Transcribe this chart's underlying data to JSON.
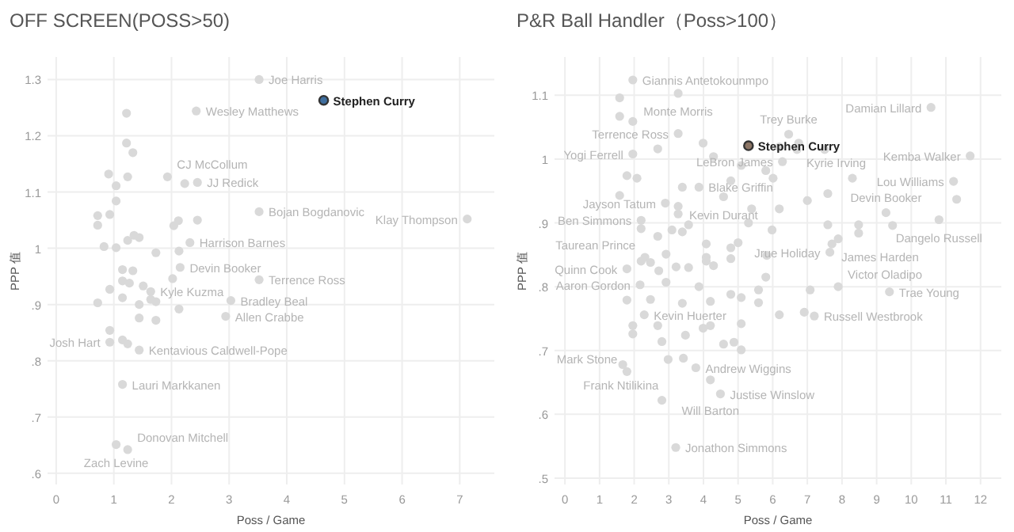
{
  "chart_data": [
    {
      "type": "scatter",
      "title": "OFF SCREEN(POSS>50)",
      "xlabel": "Poss / Game",
      "ylabel": "PPP 值",
      "xlim": [
        -0.15,
        7.6
      ],
      "ylim": [
        0.58,
        1.34
      ],
      "xticks": [
        0,
        1,
        2,
        3,
        4,
        5,
        6,
        7
      ],
      "yticks": [
        {
          "value": 0.6,
          "label": ".6"
        },
        {
          "value": 0.7,
          "label": ".7"
        },
        {
          "value": 0.8,
          "label": ".8"
        },
        {
          "value": 0.9,
          "label": ".9"
        },
        1.0,
        1.1,
        1.2,
        1.3
      ],
      "grid": true,
      "x": [
        3.52,
        1.22,
        2.43,
        1.22,
        1.33,
        0.91,
        1.24,
        1.93,
        2.23,
        2.45,
        1.04,
        1.04,
        0.72,
        0.93,
        0.72,
        3.52,
        2.45,
        2.12,
        2.04,
        7.13,
        1.35,
        1.44,
        1.24,
        2.32,
        0.83,
        1.04,
        1.73,
        2.13,
        2.15,
        1.15,
        1.33,
        3.52,
        2.02,
        1.15,
        1.27,
        1.51,
        1.64,
        0.93,
        1.15,
        1.64,
        1.73,
        1.44,
        0.72,
        3.03,
        2.13,
        2.94,
        1.44,
        1.73,
        0.93,
        0.93,
        1.15,
        1.24,
        1.44,
        1.15,
        1.04,
        1.24,
        4.64
      ],
      "values": [
        1.3,
        1.24,
        1.244,
        1.187,
        1.17,
        1.132,
        1.127,
        1.127,
        1.115,
        1.117,
        1.111,
        1.084,
        1.058,
        1.06,
        1.041,
        1.065,
        1.05,
        1.049,
        1.04,
        1.052,
        1.023,
        1.019,
        1.014,
        1.01,
        1.003,
        1.001,
        0.992,
        0.995,
        0.966,
        0.962,
        0.96,
        0.944,
        0.946,
        0.942,
        0.938,
        0.933,
        0.923,
        0.927,
        0.912,
        0.909,
        0.905,
        0.9,
        0.903,
        0.907,
        0.892,
        0.879,
        0.876,
        0.872,
        0.854,
        0.833,
        0.837,
        0.83,
        0.819,
        0.758,
        0.651,
        0.642,
        1.263
      ],
      "colors": [
        "#d9d9d9",
        "#d9d9d9",
        "#d9d9d9",
        "#d9d9d9",
        "#d9d9d9",
        "#d9d9d9",
        "#d9d9d9",
        "#d9d9d9",
        "#d9d9d9",
        "#d9d9d9",
        "#d9d9d9",
        "#d9d9d9",
        "#d9d9d9",
        "#d9d9d9",
        "#d9d9d9",
        "#d9d9d9",
        "#d9d9d9",
        "#d9d9d9",
        "#d9d9d9",
        "#d9d9d9",
        "#d9d9d9",
        "#d9d9d9",
        "#d9d9d9",
        "#d9d9d9",
        "#d9d9d9",
        "#d9d9d9",
        "#d9d9d9",
        "#d9d9d9",
        "#d9d9d9",
        "#d9d9d9",
        "#d9d9d9",
        "#d9d9d9",
        "#d9d9d9",
        "#d9d9d9",
        "#d9d9d9",
        "#d9d9d9",
        "#d9d9d9",
        "#d9d9d9",
        "#d9d9d9",
        "#d9d9d9",
        "#d9d9d9",
        "#d9d9d9",
        "#d9d9d9",
        "#d9d9d9",
        "#d9d9d9",
        "#d9d9d9",
        "#d9d9d9",
        "#d9d9d9",
        "#d9d9d9",
        "#d9d9d9",
        "#d9d9d9",
        "#d9d9d9",
        "#d9d9d9",
        "#d9d9d9",
        "#d9d9d9",
        "#d9d9d9",
        "#3f6e9e"
      ],
      "annotations": [
        {
          "text": "Joe Harris",
          "x": 3.52,
          "y": 1.3
        },
        {
          "text": "Stephen Curry",
          "x": 4.64,
          "y": 1.263
        },
        {
          "text": "Wesley Matthews",
          "x": 2.43,
          "y": 1.244
        },
        {
          "text": "CJ McCollum",
          "x": 1.93,
          "y": 1.127
        },
        {
          "text": "JJ Redick",
          "x": 2.45,
          "y": 1.117
        },
        {
          "text": "Bojan Bogdanovic",
          "x": 3.52,
          "y": 1.065
        },
        {
          "text": "Klay Thompson",
          "x": 7.13,
          "y": 1.052
        },
        {
          "text": "Harrison Barnes",
          "x": 2.32,
          "y": 1.01
        },
        {
          "text": "Devin Booker",
          "x": 2.15,
          "y": 0.966
        },
        {
          "text": "Terrence Ross",
          "x": 3.52,
          "y": 0.944
        },
        {
          "text": "Kyle Kuzma",
          "x": 1.64,
          "y": 0.923
        },
        {
          "text": "Bradley Beal",
          "x": 3.03,
          "y": 0.907
        },
        {
          "text": "Allen Crabbe",
          "x": 2.94,
          "y": 0.879
        },
        {
          "text": "Josh Hart",
          "x": 0.93,
          "y": 0.833
        },
        {
          "text": "Kentavious Caldwell-Pope",
          "x": 1.44,
          "y": 0.819
        },
        {
          "text": "Lauri Markkanen",
          "x": 1.15,
          "y": 0.758
        },
        {
          "text": "Zach Levine",
          "x": 1.04,
          "y": 0.651
        },
        {
          "text": "Donovan Mitchell",
          "x": 1.24,
          "y": 0.642
        }
      ]
    },
    {
      "type": "scatter",
      "title": "P&R Ball Handler（Poss>100）",
      "xlabel": "Poss / Game",
      "ylabel": "PPP 值",
      "xlim": [
        -0.3,
        12.6
      ],
      "ylim": [
        0.49,
        1.16
      ],
      "xticks": [
        0,
        1,
        2,
        3,
        4,
        5,
        6,
        7,
        8,
        9,
        10,
        11,
        12
      ],
      "yticks": [
        {
          "value": 0.5,
          "label": ".5"
        },
        {
          "value": 0.6,
          "label": ".6"
        },
        {
          "value": 0.7,
          "label": ".7"
        },
        {
          "value": 0.8,
          "label": ".8"
        },
        {
          "value": 0.9,
          "label": ".9"
        },
        1.0,
        1.1
      ],
      "grid": true,
      "x": [
        1.96,
        1.58,
        3.27,
        1.58,
        1.96,
        3.27,
        3.99,
        2.68,
        6.46,
        6.75,
        6.7,
        6.19,
        7.5,
        10.57,
        11.7,
        1.96,
        4.29,
        5.09,
        5.8,
        6.01,
        6.28,
        1.79,
        2.08,
        3.39,
        3.87,
        4.79,
        8.3,
        11.22,
        4.58,
        7.0,
        7.59,
        9.27,
        11.31,
        2.9,
        3.27,
        3.27,
        1.58,
        2.2,
        2.2,
        2.68,
        3.09,
        3.39,
        3.57,
        5.39,
        6.19,
        5.3,
        5.98,
        7.59,
        8.48,
        8.48,
        9.46,
        10.8,
        7.71,
        7.89,
        4.08,
        5.0,
        4.79,
        2.31,
        2.92,
        4.08,
        4.79,
        5.83,
        7.65,
        2.2,
        2.47,
        1.79,
        2.71,
        3.21,
        3.57,
        4.08,
        4.29,
        7.89,
        2.17,
        2.92,
        3.87,
        4.79,
        5.09,
        5.59,
        5.59,
        5.8,
        7.08,
        9.37,
        1.79,
        2.47,
        3.39,
        4.2,
        2.29,
        1.96,
        1.96,
        2.68,
        3.48,
        3.99,
        4.2,
        5.09,
        6.19,
        6.91,
        7.2,
        2.8,
        4.58,
        4.88,
        5.09,
        2.98,
        3.42,
        3.78,
        1.67,
        1.79,
        4.2,
        4.49,
        2.8,
        3.2,
        5.3
      ],
      "values": [
        1.124,
        1.096,
        1.103,
        1.067,
        1.059,
        1.04,
        1.025,
        1.016,
        1.039,
        1.025,
        1.015,
        1.019,
        1.015,
        1.081,
        1.005,
        1.008,
        1.004,
        0.99,
        0.982,
        0.97,
        0.996,
        0.974,
        0.97,
        0.956,
        0.956,
        0.966,
        0.97,
        0.965,
        0.941,
        0.935,
        0.946,
        0.916,
        0.937,
        0.931,
        0.926,
        0.914,
        0.943,
        0.904,
        0.891,
        0.879,
        0.889,
        0.886,
        0.897,
        0.922,
        0.922,
        0.9,
        0.889,
        0.897,
        0.897,
        0.884,
        0.896,
        0.905,
        0.867,
        0.875,
        0.867,
        0.869,
        0.861,
        0.846,
        0.851,
        0.846,
        0.844,
        0.849,
        0.854,
        0.84,
        0.838,
        0.828,
        0.825,
        0.831,
        0.83,
        0.84,
        0.833,
        0.8,
        0.803,
        0.807,
        0.8,
        0.788,
        0.783,
        0.795,
        0.775,
        0.815,
        0.795,
        0.792,
        0.779,
        0.78,
        0.774,
        0.777,
        0.756,
        0.739,
        0.726,
        0.739,
        0.724,
        0.735,
        0.739,
        0.742,
        0.756,
        0.76,
        0.754,
        0.714,
        0.71,
        0.713,
        0.701,
        0.686,
        0.688,
        0.673,
        0.678,
        0.667,
        0.654,
        0.632,
        0.622,
        0.548,
        1.021
      ],
      "colors": [
        "#d9d9d9",
        "#d9d9d9",
        "#d9d9d9",
        "#d9d9d9",
        "#d9d9d9",
        "#d9d9d9",
        "#d9d9d9",
        "#d9d9d9",
        "#d9d9d9",
        "#d9d9d9",
        "#d9d9d9",
        "#d9d9d9",
        "#d9d9d9",
        "#d9d9d9",
        "#d9d9d9",
        "#d9d9d9",
        "#d9d9d9",
        "#d9d9d9",
        "#d9d9d9",
        "#d9d9d9",
        "#d9d9d9",
        "#d9d9d9",
        "#d9d9d9",
        "#d9d9d9",
        "#d9d9d9",
        "#d9d9d9",
        "#d9d9d9",
        "#d9d9d9",
        "#d9d9d9",
        "#d9d9d9",
        "#d9d9d9",
        "#d9d9d9",
        "#d9d9d9",
        "#d9d9d9",
        "#d9d9d9",
        "#d9d9d9",
        "#d9d9d9",
        "#d9d9d9",
        "#d9d9d9",
        "#d9d9d9",
        "#d9d9d9",
        "#d9d9d9",
        "#d9d9d9",
        "#d9d9d9",
        "#d9d9d9",
        "#d9d9d9",
        "#d9d9d9",
        "#d9d9d9",
        "#d9d9d9",
        "#d9d9d9",
        "#d9d9d9",
        "#d9d9d9",
        "#d9d9d9",
        "#d9d9d9",
        "#d9d9d9",
        "#d9d9d9",
        "#d9d9d9",
        "#d9d9d9",
        "#d9d9d9",
        "#d9d9d9",
        "#d9d9d9",
        "#d9d9d9",
        "#d9d9d9",
        "#d9d9d9",
        "#d9d9d9",
        "#d9d9d9",
        "#d9d9d9",
        "#d9d9d9",
        "#d9d9d9",
        "#d9d9d9",
        "#d9d9d9",
        "#d9d9d9",
        "#d9d9d9",
        "#d9d9d9",
        "#d9d9d9",
        "#d9d9d9",
        "#d9d9d9",
        "#d9d9d9",
        "#d9d9d9",
        "#d9d9d9",
        "#d9d9d9",
        "#d9d9d9",
        "#d9d9d9",
        "#d9d9d9",
        "#d9d9d9",
        "#d9d9d9",
        "#d9d9d9",
        "#d9d9d9",
        "#d9d9d9",
        "#d9d9d9",
        "#d9d9d9",
        "#d9d9d9",
        "#d9d9d9",
        "#d9d9d9",
        "#d9d9d9",
        "#d9d9d9",
        "#d9d9d9",
        "#d9d9d9",
        "#d9d9d9",
        "#d9d9d9",
        "#d9d9d9",
        "#d9d9d9",
        "#d9d9d9",
        "#d9d9d9",
        "#d9d9d9",
        "#d9d9d9",
        "#d9d9d9",
        "#d9d9d9",
        "#d9d9d9",
        "#d9d9d9",
        "#8c7565"
      ],
      "annotations": [
        {
          "text": "Giannis Antetokounmpo",
          "x": 1.96,
          "y": 1.124
        },
        {
          "text": "Monte Morris",
          "x": 3.27,
          "y": 1.103
        },
        {
          "text": "Terrence Ross",
          "x": 3.27,
          "y": 1.04
        },
        {
          "text": "Trey Burke",
          "x": 6.46,
          "y": 1.039
        },
        {
          "text": "Kyrie Irving",
          "x": 6.7,
          "y": 1.015
        },
        {
          "text": "Damian Lillard",
          "x": 10.57,
          "y": 1.081
        },
        {
          "text": "Yogi Ferrell",
          "x": 1.96,
          "y": 1.008
        },
        {
          "text": "Kemba Walker",
          "x": 11.7,
          "y": 1.005
        },
        {
          "text": "Stephen Curry",
          "x": 5.3,
          "y": 1.021
        },
        {
          "text": "Blake Griffin",
          "x": 3.87,
          "y": 0.956
        },
        {
          "text": "LeBron James",
          "x": 6.28,
          "y": 0.996
        },
        {
          "text": "Kevin Durant",
          "x": 4.58,
          "y": 0.941
        },
        {
          "text": "Lou Williams",
          "x": 11.22,
          "y": 0.965
        },
        {
          "text": "Devin Booker",
          "x": 9.27,
          "y": 0.916
        },
        {
          "text": "Jayson Tatum",
          "x": 2.9,
          "y": 0.931
        },
        {
          "text": "Ben Simmons",
          "x": 2.2,
          "y": 0.904
        },
        {
          "text": "Dangelo Russell",
          "x": 10.8,
          "y": 0.905
        },
        {
          "text": "James Harden",
          "x": 7.71,
          "y": 0.867
        },
        {
          "text": "Jrue Holiday",
          "x": 7.65,
          "y": 0.854
        },
        {
          "text": "Taurean Prince",
          "x": 2.31,
          "y": 0.846
        },
        {
          "text": "Victor Oladipo",
          "x": 7.89,
          "y": 0.8
        },
        {
          "text": "Quinn Cook",
          "x": 1.79,
          "y": 0.828
        },
        {
          "text": "Aaron Gordon",
          "x": 2.17,
          "y": 0.803
        },
        {
          "text": "Trae Young",
          "x": 9.37,
          "y": 0.792
        },
        {
          "text": "Kevin Huerter",
          "x": 2.29,
          "y": 0.756
        },
        {
          "text": "Russell Westbrook",
          "x": 7.2,
          "y": 0.754
        },
        {
          "text": "Frank Ntilikina",
          "x": 2.98,
          "y": 0.686
        },
        {
          "text": "Andrew Wiggins",
          "x": 3.78,
          "y": 0.673
        },
        {
          "text": "Mark Stone",
          "x": 1.79,
          "y": 0.667
        },
        {
          "text": "Will Barton",
          "x": 4.2,
          "y": 0.654
        },
        {
          "text": "Justise Winslow",
          "x": 4.49,
          "y": 0.632
        },
        {
          "text": "Jonathon Simmons",
          "x": 3.2,
          "y": 0.548
        }
      ]
    }
  ]
}
